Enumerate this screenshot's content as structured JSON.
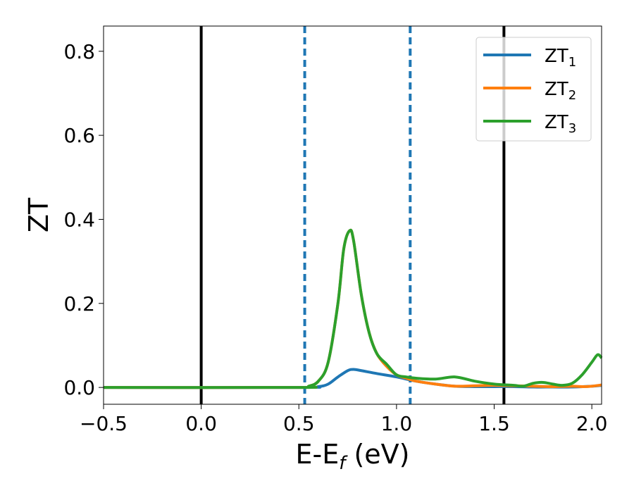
{
  "chart_data": {
    "type": "line",
    "xlabel_main": "E-E",
    "xlabel_sub": "f",
    "xlabel_unit": " (eV)",
    "ylabel": "ZT",
    "xlim": [
      -0.5,
      2.05
    ],
    "ylim": [
      -0.04,
      0.86
    ],
    "xticks": [
      -0.5,
      0.0,
      0.5,
      1.0,
      1.5,
      2.0
    ],
    "xtick_labels": [
      "−0.5",
      "0.0",
      "0.5",
      "1.0",
      "1.5",
      "2.0"
    ],
    "yticks": [
      0.0,
      0.2,
      0.4,
      0.6,
      0.8
    ],
    "ytick_labels": [
      "0.0",
      "0.2",
      "0.4",
      "0.6",
      "0.8"
    ],
    "vlines": [
      {
        "x": 0.0,
        "style": "solid",
        "color": "#000000"
      },
      {
        "x": 1.55,
        "style": "solid",
        "color": "#000000"
      },
      {
        "x": 0.53,
        "style": "dashed",
        "color": "#1f77b4"
      },
      {
        "x": 1.07,
        "style": "dashed",
        "color": "#1f77b4"
      }
    ],
    "legend_placement": "top-right",
    "series": [
      {
        "name": "ZT",
        "sub": "1",
        "color": "#1f77b4",
        "x": [
          -0.5,
          0.5,
          0.6,
          0.65,
          0.7,
          0.75,
          0.78,
          0.82,
          0.9,
          1.0,
          1.1,
          1.2,
          1.3,
          1.4,
          1.5,
          1.6,
          1.7,
          1.8,
          1.9,
          2.0,
          2.05
        ],
        "y": [
          0.0,
          0.0,
          0.002,
          0.008,
          0.025,
          0.04,
          0.043,
          0.04,
          0.033,
          0.025,
          0.015,
          0.008,
          0.003,
          0.002,
          0.002,
          0.002,
          0.001,
          0.001,
          0.001,
          0.003,
          0.005
        ]
      },
      {
        "name": "ZT",
        "sub": "2",
        "color": "#ff7f0e",
        "x": [
          -0.5,
          0.5,
          0.55,
          0.6,
          0.65,
          0.7,
          0.73,
          0.76,
          0.78,
          0.82,
          0.86,
          0.9,
          0.95,
          1.0,
          1.05,
          1.1,
          1.2,
          1.3,
          1.4,
          1.5,
          1.6,
          1.7,
          1.8,
          1.9,
          1.95,
          2.0,
          2.05
        ],
        "y": [
          0.0,
          0.0,
          0.003,
          0.015,
          0.06,
          0.2,
          0.33,
          0.373,
          0.35,
          0.22,
          0.13,
          0.08,
          0.05,
          0.03,
          0.022,
          0.015,
          0.008,
          0.003,
          0.004,
          0.005,
          0.004,
          0.003,
          0.002,
          0.003,
          0.002,
          0.003,
          0.006
        ]
      },
      {
        "name": "ZT",
        "sub": "3",
        "color": "#2ca02c",
        "x": [
          -0.5,
          0.5,
          0.55,
          0.6,
          0.65,
          0.7,
          0.73,
          0.76,
          0.78,
          0.82,
          0.86,
          0.9,
          0.95,
          1.0,
          1.05,
          1.1,
          1.2,
          1.3,
          1.4,
          1.5,
          1.6,
          1.65,
          1.7,
          1.75,
          1.8,
          1.85,
          1.9,
          1.95,
          2.0,
          2.03,
          2.05
        ],
        "y": [
          0.0,
          0.0,
          0.003,
          0.015,
          0.06,
          0.2,
          0.33,
          0.373,
          0.35,
          0.22,
          0.13,
          0.08,
          0.055,
          0.03,
          0.025,
          0.022,
          0.02,
          0.025,
          0.015,
          0.008,
          0.005,
          0.003,
          0.01,
          0.012,
          0.008,
          0.005,
          0.01,
          0.03,
          0.06,
          0.078,
          0.07
        ]
      }
    ]
  }
}
